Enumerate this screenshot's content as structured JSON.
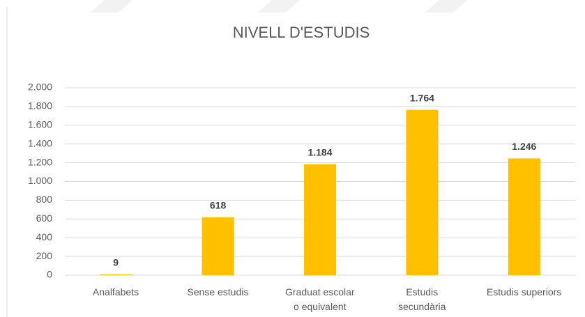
{
  "chart_data": {
    "type": "bar",
    "title": "NIVELL D'ESTUDIS",
    "categories": [
      "Analfabets",
      "Sense estudis",
      "Graduat escolar\no equivalent",
      "Estudis\nsecundària",
      "Estudis superiors"
    ],
    "values": [
      9,
      618,
      1184,
      1764,
      1246
    ],
    "value_labels": [
      "9",
      "618",
      "1.184",
      "1.764",
      "1.246"
    ],
    "color": "#ffc000",
    "ylim": [
      0,
      2000
    ],
    "yticks": [
      0,
      200,
      400,
      600,
      800,
      {
        "value": 1000,
        "label": "1.000"
      },
      {
        "value": 1200,
        "label": "1.200"
      },
      {
        "value": 1400,
        "label": "1.400"
      },
      {
        "value": 1600,
        "label": "1.600"
      },
      {
        "value": 1800,
        "label": "1.800"
      },
      {
        "value": 2000,
        "label": "2.000"
      }
    ],
    "grid": true
  }
}
